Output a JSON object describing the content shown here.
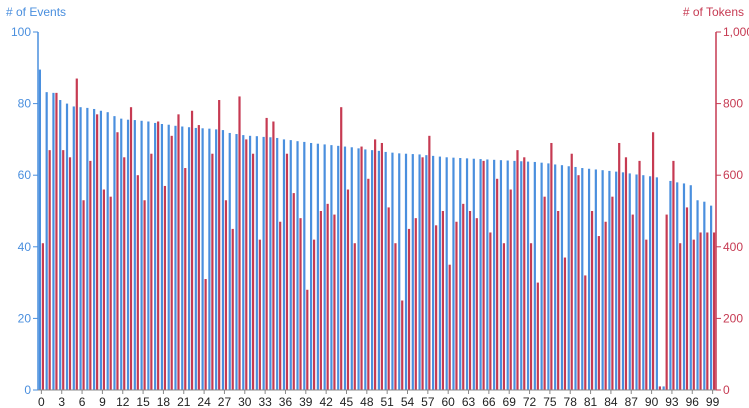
{
  "chart_data": {
    "type": "bar",
    "left_axis_label": "# of Events",
    "right_axis_label": "# of Tokens",
    "left_ylim": [
      0,
      100
    ],
    "right_ylim": [
      0,
      1000
    ],
    "left_ticks": [
      "0",
      "20",
      "40",
      "60",
      "80",
      "100"
    ],
    "right_ticks": [
      "0",
      "200",
      "400",
      "600",
      "800",
      "1,000"
    ],
    "x_tick_labels": [
      "0",
      "3",
      "6",
      "9",
      "12",
      "15",
      "18",
      "21",
      "24",
      "27",
      "30",
      "33",
      "36",
      "39",
      "42",
      "45",
      "48",
      "51",
      "54",
      "57",
      "60",
      "63",
      "66",
      "69",
      "72",
      "75",
      "78",
      "81",
      "84",
      "87",
      "90",
      "93",
      "96",
      "99"
    ],
    "x": [
      0,
      1,
      2,
      3,
      4,
      5,
      6,
      7,
      8,
      9,
      10,
      11,
      12,
      13,
      14,
      15,
      16,
      17,
      18,
      19,
      20,
      21,
      22,
      23,
      24,
      25,
      26,
      27,
      28,
      29,
      30,
      31,
      32,
      33,
      34,
      35,
      36,
      37,
      38,
      39,
      40,
      41,
      42,
      43,
      44,
      45,
      46,
      47,
      48,
      49,
      50,
      51,
      52,
      53,
      54,
      55,
      56,
      57,
      58,
      59,
      60,
      61,
      62,
      63,
      64,
      65,
      66,
      67,
      68,
      69,
      70,
      71,
      72,
      73,
      74,
      75,
      76,
      77,
      78,
      79,
      80,
      81,
      82,
      83,
      84,
      85,
      86,
      87,
      88,
      89,
      90,
      91,
      92,
      93,
      94,
      95,
      96,
      97,
      98,
      99
    ],
    "series": [
      {
        "name": "# of Events",
        "axis": "left",
        "color": "#4a8fde",
        "values": [
          89.5,
          83.2,
          83.0,
          81.0,
          80.0,
          79.2,
          79.0,
          78.8,
          78.5,
          78.0,
          77.6,
          76.5,
          75.8,
          75.5,
          75.4,
          75.2,
          75.0,
          74.6,
          74.3,
          74.1,
          73.8,
          73.6,
          73.4,
          73.2,
          73.1,
          73.0,
          72.8,
          72.6,
          71.8,
          71.5,
          71.2,
          71.0,
          70.9,
          70.7,
          70.6,
          70.4,
          70.0,
          69.8,
          69.5,
          69.3,
          69.0,
          68.8,
          68.6,
          68.4,
          68.2,
          68.0,
          67.8,
          67.5,
          67.2,
          67.0,
          66.8,
          66.5,
          66.3,
          66.1,
          66.0,
          65.9,
          65.8,
          65.6,
          65.4,
          65.2,
          65.0,
          64.9,
          64.8,
          64.7,
          64.6,
          64.5,
          64.4,
          64.3,
          64.2,
          64.1,
          64.0,
          63.9,
          63.8,
          63.7,
          63.5,
          63.3,
          63.0,
          62.8,
          62.5,
          62.3,
          62.0,
          61.8,
          61.6,
          61.4,
          61.2,
          61.0,
          60.8,
          60.5,
          60.2,
          60.0,
          59.7,
          59.4,
          1.0,
          58.4,
          58.0,
          57.7,
          57.2,
          53.0,
          52.6,
          51.5
        ]
      },
      {
        "name": "# of Tokens",
        "axis": "right",
        "color": "#c63a52",
        "values": [
          410,
          670,
          830,
          670,
          650,
          870,
          530,
          640,
          770,
          560,
          540,
          720,
          650,
          790,
          600,
          530,
          660,
          750,
          570,
          710,
          770,
          620,
          780,
          740,
          310,
          660,
          810,
          530,
          450,
          820,
          700,
          660,
          420,
          760,
          750,
          470,
          660,
          550,
          480,
          280,
          420,
          500,
          520,
          490,
          790,
          560,
          410,
          680,
          590,
          700,
          690,
          510,
          410,
          250,
          450,
          480,
          650,
          710,
          460,
          500,
          350,
          470,
          520,
          500,
          480,
          640,
          440,
          590,
          410,
          560,
          670,
          650,
          410,
          300,
          540,
          690,
          500,
          370,
          660,
          600,
          320,
          500,
          430,
          470,
          540,
          690,
          650,
          490,
          640,
          420,
          720,
          10,
          490,
          640,
          410,
          510,
          420,
          440,
          440,
          440
        ]
      }
    ],
    "grid": false,
    "legend": "none"
  }
}
